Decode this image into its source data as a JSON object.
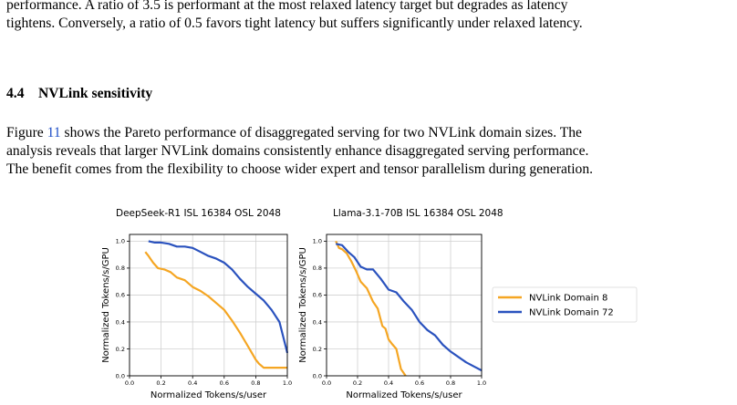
{
  "intro_paragraph": {
    "line1": "performance. A ratio of 3.5 is performant at the most relaxed latency target but degrades as latency",
    "line2": "tightens. Conversely, a ratio of 0.5 favors tight latency but suffers significantly under relaxed latency."
  },
  "section": {
    "number": "4.4",
    "title": "NVLink sensitivity"
  },
  "body_paragraph": {
    "line1_before": "Figure ",
    "figure_ref": "11",
    "line1_after": " shows the Pareto performance of disaggregated serving for two NVLink domain sizes. The",
    "line2": "analysis reveals that larger NVLink domains consistently enhance disaggregated serving performance.",
    "line3": "The benefit comes from the flexibility to choose wider expert and tensor parallelism during generation."
  },
  "colors": {
    "nvlink8": "#f5a623",
    "nvlink72": "#2a52be",
    "grid": "#d0d0d0",
    "link": "#1f4fc7"
  },
  "chart_data": [
    {
      "type": "line",
      "title": "DeepSeek-R1 ISL 16384 OSL 2048",
      "xlabel": "Normalized Tokens/s/user",
      "ylabel": "Normalized Tokens/s/GPU",
      "xlim": [
        0.0,
        1.0
      ],
      "ylim": [
        0.0,
        1.05
      ],
      "xticks": [
        "0.0",
        "0.2",
        "0.4",
        "0.6",
        "0.8",
        "1.0"
      ],
      "yticks": [
        "0.0",
        "0.2",
        "0.4",
        "0.6",
        "0.8",
        "1.0"
      ],
      "grid": true,
      "series": [
        {
          "name": "NVLink Domain 8",
          "x": [
            0.1,
            0.12,
            0.15,
            0.18,
            0.22,
            0.26,
            0.3,
            0.35,
            0.4,
            0.45,
            0.5,
            0.55,
            0.6,
            0.65,
            0.7,
            0.75,
            0.8,
            0.82,
            0.85,
            0.9,
            0.95,
            1.0
          ],
          "y": [
            0.92,
            0.89,
            0.84,
            0.8,
            0.79,
            0.77,
            0.73,
            0.71,
            0.66,
            0.63,
            0.59,
            0.54,
            0.49,
            0.41,
            0.32,
            0.22,
            0.12,
            0.09,
            0.06,
            0.06,
            0.06,
            0.06
          ]
        },
        {
          "name": "NVLink Domain 72",
          "x": [
            0.12,
            0.16,
            0.2,
            0.25,
            0.3,
            0.35,
            0.4,
            0.45,
            0.5,
            0.55,
            0.6,
            0.65,
            0.7,
            0.75,
            0.8,
            0.85,
            0.9,
            0.95,
            1.0
          ],
          "y": [
            1.0,
            0.99,
            0.99,
            0.98,
            0.96,
            0.96,
            0.95,
            0.92,
            0.89,
            0.87,
            0.84,
            0.79,
            0.72,
            0.66,
            0.61,
            0.56,
            0.49,
            0.4,
            0.17
          ]
        }
      ]
    },
    {
      "type": "line",
      "title": "Llama-3.1-70B ISL 16384 OSL 2048",
      "xlabel": "Normalized Tokens/s/user",
      "ylabel": "Normalized Tokens/s/GPU",
      "xlim": [
        0.0,
        1.0
      ],
      "ylim": [
        0.0,
        1.05
      ],
      "xticks": [
        "0.0",
        "0.2",
        "0.4",
        "0.6",
        "0.8",
        "1.0"
      ],
      "yticks": [
        "0.0",
        "0.2",
        "0.4",
        "0.6",
        "0.8",
        "1.0"
      ],
      "grid": true,
      "series": [
        {
          "name": "NVLink Domain 8",
          "x": [
            0.06,
            0.08,
            0.1,
            0.13,
            0.16,
            0.19,
            0.22,
            0.26,
            0.3,
            0.33,
            0.36,
            0.38,
            0.4,
            0.42,
            0.45,
            0.48,
            0.51
          ],
          "y": [
            1.0,
            0.95,
            0.94,
            0.91,
            0.85,
            0.78,
            0.7,
            0.65,
            0.55,
            0.5,
            0.37,
            0.35,
            0.27,
            0.24,
            0.2,
            0.05,
            0.0
          ]
        },
        {
          "name": "NVLink Domain 72",
          "x": [
            0.06,
            0.1,
            0.14,
            0.18,
            0.22,
            0.26,
            0.3,
            0.35,
            0.4,
            0.45,
            0.5,
            0.55,
            0.6,
            0.65,
            0.7,
            0.75,
            0.8,
            0.85,
            0.9,
            0.95,
            1.0
          ],
          "y": [
            0.98,
            0.97,
            0.92,
            0.88,
            0.81,
            0.79,
            0.79,
            0.72,
            0.64,
            0.62,
            0.55,
            0.49,
            0.4,
            0.34,
            0.3,
            0.23,
            0.18,
            0.14,
            0.1,
            0.07,
            0.04
          ]
        }
      ]
    }
  ]
}
